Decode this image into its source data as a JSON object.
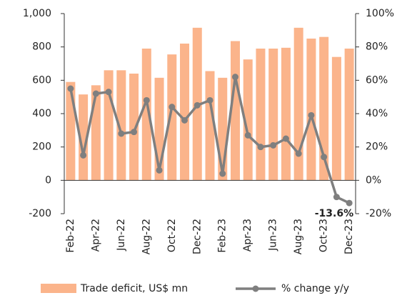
{
  "chart_data": {
    "type": "bar_line",
    "categories": [
      "Feb-22",
      null,
      "Apr-22",
      null,
      "Jun-22",
      null,
      "Aug-22",
      null,
      "Oct-22",
      null,
      "Dec-22",
      null,
      "Feb-23",
      null,
      "Apr-23",
      null,
      "Jun-23",
      null,
      "Aug-23",
      null,
      "Oct-23",
      null,
      "Dec-23"
    ],
    "series": [
      {
        "name": "Trade deficit, US$ mn",
        "type": "bar",
        "color": "#fbb48b",
        "axis": "y",
        "values": [
          590,
          515,
          570,
          660,
          660,
          640,
          790,
          615,
          755,
          820,
          915,
          655,
          615,
          835,
          725,
          790,
          790,
          795,
          915,
          850,
          860,
          740,
          790
        ]
      },
      {
        "name": "% change y/y",
        "type": "line",
        "color": "#7f7f7f",
        "axis": "y2",
        "values": [
          55,
          15,
          52,
          53,
          28,
          29,
          48,
          6,
          44,
          36,
          45,
          48,
          4,
          62,
          27,
          20,
          21,
          25,
          16,
          39,
          14,
          -10,
          -13.6
        ],
        "value_labels": [
          null,
          null,
          null,
          null,
          null,
          null,
          null,
          null,
          null,
          null,
          null,
          null,
          null,
          null,
          null,
          null,
          null,
          null,
          null,
          null,
          null,
          null,
          "-13.6%"
        ]
      }
    ],
    "ylim": [
      -200,
      1000
    ],
    "yticks": [
      -200,
      0,
      200,
      400,
      600,
      800,
      {
        "value": 1000,
        "label": "1,000"
      }
    ],
    "y2lim": [
      -20,
      100
    ],
    "y2ticks": [
      {
        "value": -20,
        "label": "-20%"
      },
      {
        "value": 0,
        "label": "0%"
      },
      {
        "value": 20,
        "label": "20%"
      },
      {
        "value": 40,
        "label": "40%"
      },
      {
        "value": 60,
        "label": "60%"
      },
      {
        "value": 80,
        "label": "80%"
      },
      {
        "value": 100,
        "label": "100%"
      }
    ],
    "legend": "bottom"
  }
}
